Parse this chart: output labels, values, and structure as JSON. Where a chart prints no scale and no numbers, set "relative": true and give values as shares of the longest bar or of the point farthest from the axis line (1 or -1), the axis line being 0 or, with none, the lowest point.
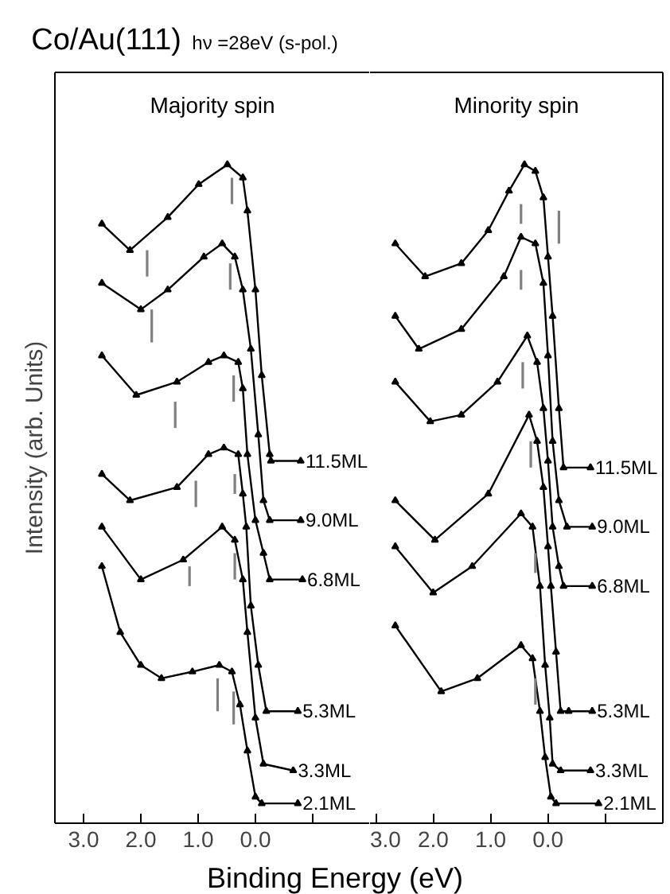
{
  "chart_data": [
    {
      "type": "line",
      "title": "Co/Au(111)",
      "subtitle": "hν =28eV (s-pol.)",
      "xlabel": "Binding Energy (eV)",
      "ylabel": "Intensity (arb. Units)",
      "annotations": [
        "Majority spin"
      ],
      "relative": true,
      "xlim": [
        3.5,
        -2.0
      ],
      "xticks": [
        {
          "value": 3.0,
          "label": "3.0"
        },
        {
          "value": 2.0,
          "label": "2.0"
        },
        {
          "value": 1.0,
          "label": "1.0"
        },
        {
          "value": 0.0,
          "label": "0.0"
        },
        {
          "value": -1.0,
          "label": null
        }
      ],
      "tick_labels": "x",
      "marker": "triangle",
      "series": [
        {
          "name": "11.5ML",
          "color": "#000000",
          "x": [
            2.68,
            2.19,
            1.53,
            0.99,
            0.49,
            0.22,
            0.14,
            0.0,
            -0.11,
            -0.25,
            -0.27,
            -0.79
          ],
          "values": [
            0.91,
            0.87,
            0.92,
            0.97,
            1.0,
            0.98,
            0.93,
            0.81,
            0.68,
            0.56,
            0.55,
            0.55
          ]
        },
        {
          "name": "9.0ML",
          "color": "#000000",
          "x": [
            2.68,
            2.0,
            1.53,
            0.9,
            0.58,
            0.36,
            0.22,
            0.08,
            -0.05,
            -0.14,
            -0.25,
            -0.79
          ],
          "values": [
            0.82,
            0.78,
            0.81,
            0.86,
            0.88,
            0.86,
            0.81,
            0.72,
            0.59,
            0.49,
            0.46,
            0.46
          ]
        },
        {
          "name": "6.8ML",
          "color": "#000000",
          "x": [
            2.68,
            2.08,
            1.37,
            0.82,
            0.55,
            0.3,
            0.22,
            0.14,
            0.0,
            -0.14,
            -0.25,
            -0.82
          ],
          "values": [
            0.71,
            0.65,
            0.67,
            0.7,
            0.71,
            0.7,
            0.66,
            0.56,
            0.46,
            0.41,
            0.37,
            0.37
          ]
        },
        {
          "name": "5.3ML",
          "color": "#000000",
          "x": [
            2.68,
            2.19,
            1.37,
            0.82,
            0.55,
            0.3,
            0.22,
            0.16,
            0.08,
            -0.05,
            -0.19,
            -0.74
          ],
          "values": [
            0.53,
            0.49,
            0.51,
            0.56,
            0.57,
            0.56,
            0.5,
            0.45,
            0.33,
            0.24,
            0.17,
            0.17
          ]
        },
        {
          "name": "3.3ML",
          "color": "#000000",
          "x": [
            2.68,
            2.0,
            1.26,
            0.58,
            0.36,
            0.22,
            0.14,
            0.0,
            -0.14,
            -0.66
          ],
          "values": [
            0.45,
            0.37,
            0.4,
            0.45,
            0.43,
            0.37,
            0.29,
            0.16,
            0.09,
            0.08
          ]
        },
        {
          "name": "2.1ML",
          "color": "#000000",
          "x": [
            2.68,
            2.36,
            2.0,
            1.64,
            1.1,
            0.63,
            0.41,
            0.27,
            0.14,
            0.0,
            -0.11,
            -0.74
          ],
          "values": [
            0.39,
            0.29,
            0.24,
            0.22,
            0.23,
            0.24,
            0.23,
            0.18,
            0.11,
            0.04,
            0.03,
            0.03
          ]
        },
        {
          "marker": "none",
          "color": "#808080",
          "x": [
            1.89,
            1.89
          ],
          "values": [
            0.87,
            0.83
          ]
        },
        {
          "marker": "none",
          "color": "#808080",
          "x": [
            0.41,
            0.41
          ],
          "values": [
            0.98,
            0.94
          ]
        },
        {
          "marker": "none",
          "color": "#808080",
          "x": [
            1.81,
            1.81
          ],
          "values": [
            0.78,
            0.73
          ]
        },
        {
          "marker": "none",
          "color": "#808080",
          "x": [
            0.44,
            0.44
          ],
          "values": [
            0.85,
            0.81
          ]
        },
        {
          "marker": "none",
          "color": "#808080",
          "x": [
            1.4,
            1.4
          ],
          "values": [
            0.64,
            0.6
          ]
        },
        {
          "marker": "none",
          "color": "#808080",
          "x": [
            0.38,
            0.38
          ],
          "values": [
            0.68,
            0.64
          ]
        },
        {
          "marker": "none",
          "color": "#808080",
          "x": [
            1.04,
            1.04
          ],
          "values": [
            0.52,
            0.48
          ]
        },
        {
          "marker": "none",
          "color": "#808080",
          "x": [
            0.36,
            0.36
          ],
          "values": [
            0.53,
            0.5
          ]
        },
        {
          "marker": "none",
          "color": "#808080",
          "x": [
            1.15,
            1.15
          ],
          "values": [
            0.39,
            0.36
          ]
        },
        {
          "marker": "none",
          "color": "#808080",
          "x": [
            0.36,
            0.36
          ],
          "values": [
            0.41,
            0.37
          ]
        },
        {
          "marker": "none",
          "color": "#808080",
          "x": [
            0.66,
            0.66
          ],
          "values": [
            0.22,
            0.17
          ]
        },
        {
          "marker": "none",
          "color": "#808080",
          "x": [
            0.38,
            0.38
          ],
          "values": [
            0.2,
            0.15
          ]
        }
      ]
    },
    {
      "type": "line",
      "annotations": [
        "Minority spin"
      ],
      "relative": true,
      "xlim": [
        3.1,
        -2.0
      ],
      "xticks": [
        {
          "value": 3.0,
          "label": "3.0"
        },
        {
          "value": 2.0,
          "label": "2.0"
        },
        {
          "value": 1.0,
          "label": "1.0"
        },
        {
          "value": 0.0,
          "label": "0.0"
        },
        {
          "value": -1.0,
          "label": null
        }
      ],
      "tick_labels": "x",
      "marker": "triangle",
      "series": [
        {
          "name": "11.5ML",
          "color": "#000000",
          "x": [
            2.66,
            2.14,
            1.51,
            1.04,
            0.68,
            0.41,
            0.22,
            0.08,
            0.0,
            -0.08,
            -0.19,
            -0.27,
            -0.74
          ],
          "values": [
            0.88,
            0.83,
            0.85,
            0.9,
            0.96,
            1.0,
            0.99,
            0.95,
            0.86,
            0.77,
            0.63,
            0.54,
            0.54
          ]
        },
        {
          "name": "9.0ML",
          "color": "#000000",
          "x": [
            2.66,
            2.25,
            1.51,
            0.77,
            0.47,
            0.22,
            0.08,
            0.0,
            -0.08,
            -0.19,
            -0.33,
            -0.77
          ],
          "values": [
            0.77,
            0.72,
            0.75,
            0.83,
            0.89,
            0.88,
            0.82,
            0.71,
            0.58,
            0.49,
            0.45,
            0.45
          ]
        },
        {
          "name": "6.8ML",
          "color": "#000000",
          "x": [
            2.66,
            2.05,
            1.51,
            0.88,
            0.36,
            0.19,
            0.08,
            0.0,
            -0.08,
            -0.19,
            -0.27,
            -0.77
          ],
          "values": [
            0.67,
            0.61,
            0.62,
            0.67,
            0.74,
            0.7,
            0.63,
            0.55,
            0.45,
            0.39,
            0.36,
            0.36
          ]
        },
        {
          "name": "5.3ML",
          "color": "#000000",
          "x": [
            2.66,
            1.97,
            1.04,
            0.33,
            0.19,
            0.08,
            0.0,
            -0.05,
            -0.14,
            -0.22,
            -0.36,
            -0.77
          ],
          "values": [
            0.49,
            0.43,
            0.5,
            0.62,
            0.58,
            0.51,
            0.42,
            0.36,
            0.26,
            0.17,
            0.17,
            0.17
          ]
        },
        {
          "name": "3.3ML",
          "color": "#000000",
          "x": [
            2.66,
            2.0,
            1.32,
            0.47,
            0.27,
            0.14,
            0.05,
            -0.03,
            -0.08,
            -0.22,
            -0.74
          ],
          "values": [
            0.42,
            0.35,
            0.39,
            0.47,
            0.45,
            0.36,
            0.24,
            0.16,
            0.09,
            0.08,
            0.08
          ]
        },
        {
          "name": "2.1ML",
          "color": "#000000",
          "x": [
            2.66,
            1.86,
            1.23,
            0.47,
            0.27,
            0.14,
            0.05,
            -0.05,
            -0.14,
            -0.88
          ],
          "values": [
            0.3,
            0.2,
            0.22,
            0.27,
            0.25,
            0.17,
            0.1,
            0.04,
            0.03,
            0.03
          ]
        },
        {
          "marker": "none",
          "color": "#808080",
          "x": [
            0.47,
            0.47
          ],
          "values": [
            0.94,
            0.91
          ]
        },
        {
          "marker": "none",
          "color": "#808080",
          "x": [
            -0.19,
            -0.19
          ],
          "values": [
            0.93,
            0.88
          ]
        },
        {
          "marker": "none",
          "color": "#808080",
          "x": [
            0.47,
            0.47
          ],
          "values": [
            0.84,
            0.81
          ]
        },
        {
          "marker": "none",
          "color": "#808080",
          "x": [
            0.44,
            0.44
          ],
          "values": [
            0.7,
            0.66
          ]
        },
        {
          "marker": "none",
          "color": "#808080",
          "x": [
            0.3,
            0.3
          ],
          "values": [
            0.58,
            0.54
          ]
        },
        {
          "marker": "none",
          "color": "#808080",
          "x": [
            0.22,
            0.22
          ],
          "values": [
            0.41,
            0.38
          ]
        },
        {
          "marker": "none",
          "color": "#808080",
          "x": [
            0.22,
            0.22
          ],
          "values": [
            0.22,
            0.18
          ]
        }
      ]
    }
  ]
}
